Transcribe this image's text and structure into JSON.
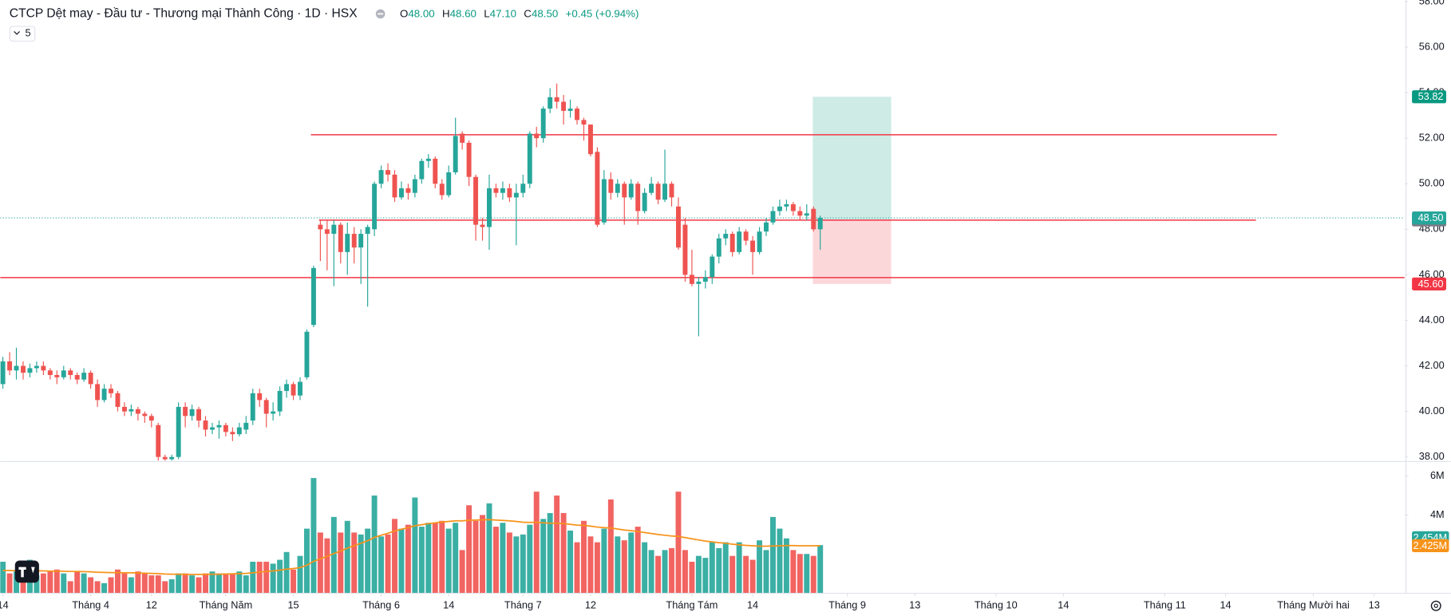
{
  "header": {
    "title": "CTCP Dệt may - Đầu tư - Thương mại Thành Công · 1D · HSX",
    "indicators_collapsed": "5"
  },
  "legend": {
    "color": "#089981",
    "items": [
      {
        "key": "O",
        "value": "48.00"
      },
      {
        "key": "H",
        "value": "48.60"
      },
      {
        "key": "L",
        "value": "47.10"
      },
      {
        "key": "C",
        "value": "48.50"
      }
    ],
    "change": "+0.45 (+0.94%)"
  },
  "chart_data": [
    {
      "type": "candlestick",
      "up_color": "#26a69a",
      "down_color": "#ef5350",
      "open": [
        41.2,
        42.2,
        41.8,
        42.0,
        41.7,
        41.9,
        42.0,
        41.8,
        41.6,
        41.5,
        41.8,
        41.6,
        41.4,
        41.7,
        41.2,
        40.5,
        41.0,
        40.8,
        40.2,
        40.0,
        40.1,
        39.9,
        39.8,
        39.4,
        38.0,
        37.9,
        38.0,
        40.2,
        39.8,
        40.1,
        39.6,
        39.2,
        39.3,
        39.4,
        39.1,
        39.0,
        39.2,
        39.6,
        40.8,
        40.5,
        39.9,
        40.0,
        40.9,
        41.2,
        40.7,
        41.5,
        43.8,
        48.2,
        48.0,
        47.8,
        48.2,
        47.0,
        47.8,
        47.2,
        47.8,
        48.0,
        50.0,
        50.6,
        50.4,
        49.4,
        49.8,
        49.6,
        50.2,
        51.0,
        51.1,
        50.0,
        49.5,
        50.5,
        52.2,
        51.8,
        50.3,
        48.2,
        48.1,
        49.8,
        49.6,
        49.8,
        49.4,
        49.6,
        50.0,
        52.2,
        52.0,
        53.3,
        53.8,
        53.6,
        53.2,
        53.3,
        52.8,
        52.6,
        51.4,
        48.3,
        50.2,
        49.6,
        50.0,
        49.4,
        50.0,
        48.8,
        49.6,
        50.0,
        49.3,
        50.0,
        49.0,
        48.2,
        46.0,
        45.6,
        45.7,
        45.9,
        46.8,
        47.6,
        47.8,
        47.0,
        47.9,
        47.5,
        47.0,
        47.9,
        48.3,
        48.8,
        49.0,
        49.1,
        48.8,
        48.6,
        48.9,
        48.0
      ],
      "high": [
        42.4,
        42.6,
        42.8,
        42.2,
        42.1,
        42.2,
        42.2,
        41.9,
        41.8,
        42.0,
        41.9,
        41.7,
        41.9,
        41.8,
        41.4,
        41.2,
        41.2,
        40.9,
        40.4,
        40.3,
        40.2,
        40.0,
        39.9,
        39.5,
        38.1,
        38.1,
        40.4,
        40.4,
        40.3,
        40.2,
        39.8,
        39.5,
        39.6,
        39.5,
        39.3,
        39.5,
        39.8,
        41.0,
        41.0,
        40.6,
        40.4,
        41.1,
        41.4,
        41.3,
        41.5,
        43.6,
        46.4,
        48.4,
        48.4,
        48.4,
        48.3,
        48.3,
        48.1,
        48.0,
        48.2,
        50.1,
        50.8,
        50.9,
        50.6,
        50.1,
        50.0,
        50.4,
        51.1,
        51.3,
        51.2,
        50.2,
        50.8,
        52.9,
        52.3,
        51.9,
        50.4,
        48.5,
        50.4,
        50.0,
        50.1,
        50.0,
        50.0,
        50.4,
        52.3,
        52.5,
        53.4,
        54.2,
        54.4,
        53.9,
        53.7,
        53.4,
        52.9,
        52.6,
        51.6,
        50.6,
        50.5,
        50.2,
        50.1,
        50.2,
        50.1,
        49.8,
        50.3,
        50.1,
        51.5,
        50.1,
        49.4,
        48.5,
        47.1,
        45.9,
        46.2,
        46.9,
        47.8,
        48.0,
        47.9,
        48.1,
        48.0,
        47.7,
        48.1,
        48.5,
        49.0,
        49.3,
        49.3,
        49.2,
        49.0,
        49.1,
        49.0,
        48.6
      ],
      "low": [
        41.0,
        41.6,
        41.4,
        41.4,
        41.5,
        41.7,
        41.6,
        41.4,
        41.2,
        41.4,
        41.4,
        41.2,
        41.3,
        41.0,
        40.2,
        40.4,
        40.6,
        40.0,
        39.8,
        39.8,
        39.6,
        39.5,
        39.3,
        37.8,
        37.6,
        37.7,
        37.9,
        39.3,
        39.6,
        39.3,
        38.9,
        39.0,
        38.8,
        38.9,
        38.7,
        38.9,
        39.0,
        39.4,
        40.2,
        39.3,
        39.6,
        39.8,
        40.6,
        40.5,
        40.5,
        41.4,
        43.7,
        46.6,
        46.2,
        45.5,
        46.5,
        46.0,
        46.5,
        45.6,
        44.6,
        47.7,
        49.8,
        50.1,
        49.2,
        49.3,
        49.3,
        49.4,
        50.0,
        50.7,
        49.8,
        49.3,
        49.4,
        50.4,
        51.5,
        49.9,
        47.5,
        47.5,
        47.1,
        49.4,
        49.3,
        49.2,
        47.3,
        49.4,
        49.8,
        51.6,
        51.8,
        53.1,
        53.3,
        52.6,
        52.9,
        52.6,
        51.9,
        51.2,
        48.1,
        48.2,
        49.3,
        49.4,
        48.2,
        49.3,
        48.2,
        48.7,
        49.5,
        49.1,
        49.2,
        49.0,
        47.1,
        45.7,
        45.5,
        43.3,
        45.4,
        45.6,
        46.5,
        47.3,
        46.8,
        46.9,
        47.3,
        46.0,
        46.9,
        47.7,
        48.2,
        48.6,
        48.8,
        48.6,
        48.4,
        48.4,
        47.9,
        47.1
      ],
      "close": [
        42.2,
        41.8,
        42.0,
        41.7,
        41.9,
        42.0,
        41.8,
        41.6,
        41.5,
        41.8,
        41.6,
        41.4,
        41.7,
        41.2,
        40.5,
        41.0,
        40.8,
        40.2,
        40.0,
        40.1,
        39.9,
        39.8,
        39.6,
        38.0,
        37.9,
        38.0,
        40.2,
        39.8,
        40.1,
        39.6,
        39.2,
        39.3,
        39.4,
        39.1,
        39.0,
        39.3,
        39.5,
        40.8,
        40.5,
        39.9,
        40.0,
        40.9,
        41.2,
        40.7,
        41.3,
        43.5,
        46.3,
        48.0,
        47.8,
        48.2,
        47.0,
        47.8,
        47.2,
        47.8,
        48.1,
        50.0,
        50.6,
        50.4,
        49.4,
        49.8,
        49.6,
        50.2,
        51.0,
        51.1,
        50.0,
        49.5,
        50.5,
        52.1,
        51.8,
        50.3,
        48.2,
        48.1,
        49.8,
        49.6,
        49.8,
        49.4,
        49.6,
        50.0,
        52.2,
        52.0,
        53.3,
        53.8,
        53.6,
        53.2,
        53.3,
        52.8,
        52.6,
        51.3,
        48.2,
        50.2,
        49.6,
        50.0,
        49.4,
        50.0,
        48.8,
        49.6,
        50.0,
        49.3,
        50.0,
        49.4,
        47.2,
        46.0,
        45.6,
        45.7,
        45.9,
        46.8,
        47.6,
        47.8,
        47.0,
        47.9,
        47.5,
        47.0,
        47.9,
        48.3,
        48.8,
        49.0,
        49.1,
        48.8,
        48.6,
        48.7,
        48.0,
        48.5
      ],
      "last_price_label": "48.50",
      "xlim": [
        -0.4,
        207.5
      ],
      "xticks": [
        {
          "value": 0,
          "label": "14"
        },
        {
          "value": 13,
          "label": "Tháng 4"
        },
        {
          "value": 22,
          "label": "12"
        },
        {
          "value": 33,
          "label": "Tháng Năm"
        },
        {
          "value": 43,
          "label": "15"
        },
        {
          "value": 56,
          "label": "Tháng 6"
        },
        {
          "value": 66,
          "label": "14"
        },
        {
          "value": 77,
          "label": "Tháng 7"
        },
        {
          "value": 87,
          "label": "12"
        },
        {
          "value": 102,
          "label": "Tháng Tám"
        },
        {
          "value": 111,
          "label": "14"
        },
        {
          "value": 125,
          "label": "Tháng 9"
        },
        {
          "value": 135,
          "label": "13"
        },
        {
          "value": 147,
          "label": "Tháng 10"
        },
        {
          "value": 157,
          "label": "14"
        },
        {
          "value": 172,
          "label": "Tháng 11"
        },
        {
          "value": 181,
          "label": "14"
        },
        {
          "value": 194,
          "label": "Tháng Mười hai"
        },
        {
          "value": 203,
          "label": "13"
        }
      ],
      "ylim": [
        37.84,
        58.07
      ],
      "yticks": [
        {
          "value": 38,
          "label": "38.00"
        },
        {
          "value": 40,
          "label": "40.00"
        },
        {
          "value": 42,
          "label": "42.00"
        },
        {
          "value": 44,
          "label": "44.00"
        },
        {
          "value": 46,
          "label": "46.00"
        },
        {
          "value": 48,
          "label": "48.00"
        },
        {
          "value": 50,
          "label": "50.00"
        },
        {
          "value": 52,
          "label": "52.00"
        },
        {
          "value": 54,
          "label": "54.00"
        },
        {
          "value": 56,
          "label": "56.00"
        },
        {
          "value": 58,
          "label": "58.00"
        }
      ],
      "levels": {
        "color": "#f23645",
        "values": [
          52.15,
          48.4,
          45.88
        ],
        "from": [
          45.6,
          46.8,
          -0.4
        ],
        "to": [
          188.6,
          185.5,
          207.5
        ]
      },
      "position": {
        "values": [
          53.82,
          48.41,
          45.6
        ],
        "value_labels": [
          "53.82",
          "48.41",
          "45.60"
        ],
        "from": 119.9,
        "to": 131.5,
        "colors": [
          "#089981",
          "#787b86",
          "#f23645"
        ]
      }
    },
    {
      "type": "volume",
      "values": [
        1.6,
        1.0,
        1.1,
        1.2,
        1.7,
        0.9,
        1.0,
        1.1,
        1.2,
        1.0,
        0.6,
        1.1,
        1.0,
        0.8,
        0.6,
        0.5,
        0.8,
        1.2,
        1.0,
        0.8,
        1.1,
        1.0,
        0.9,
        0.9,
        0.6,
        0.7,
        1.0,
        1.0,
        0.9,
        0.8,
        1.0,
        1.1,
        1.0,
        1.0,
        1.0,
        1.1,
        0.9,
        1.6,
        1.6,
        1.6,
        1.5,
        1.7,
        2.1,
        1.2,
        1.9,
        3.3,
        5.9,
        3.1,
        2.8,
        3.9,
        3.1,
        3.7,
        3.1,
        3.0,
        3.3,
        5.0,
        2.9,
        3.0,
        3.8,
        3.3,
        3.5,
        4.9,
        3.4,
        3.6,
        3.6,
        3.7,
        3.3,
        3.6,
        2.2,
        4.5,
        3.7,
        4.0,
        4.6,
        3.4,
        3.6,
        3.1,
        2.9,
        3.0,
        3.5,
        5.2,
        3.8,
        4.1,
        5.0,
        4.1,
        3.2,
        2.6,
        3.7,
        2.9,
        2.6,
        3.3,
        4.8,
        2.9,
        2.7,
        3.1,
        3.4,
        2.6,
        2.2,
        1.9,
        2.2,
        2.3,
        5.2,
        2.2,
        1.6,
        1.9,
        1.8,
        2.6,
        2.3,
        2.6,
        1.9,
        2.6,
        1.9,
        1.7,
        2.7,
        2.2,
        3.9,
        3.3,
        2.8,
        2.2,
        2.0,
        2.0,
        1.9,
        2.454
      ],
      "last_value_label": "2.454M",
      "ma_color": "#f7931a",
      "ma_values": [
        1.15,
        1.15,
        1.14,
        1.14,
        1.15,
        1.14,
        1.13,
        1.12,
        1.12,
        1.11,
        1.1,
        1.1,
        1.09,
        1.08,
        1.06,
        1.05,
        1.04,
        1.04,
        1.03,
        1.03,
        1.02,
        1.01,
        1.0,
        0.99,
        0.97,
        0.96,
        0.96,
        0.95,
        0.95,
        0.95,
        0.95,
        0.96,
        0.96,
        0.97,
        0.98,
        0.99,
        1.0,
        1.03,
        1.06,
        1.1,
        1.13,
        1.17,
        1.22,
        1.25,
        1.3,
        1.42,
        1.62,
        1.75,
        1.88,
        2.02,
        2.15,
        2.3,
        2.42,
        2.55,
        2.68,
        2.85,
        2.96,
        3.06,
        3.18,
        3.27,
        3.35,
        3.45,
        3.5,
        3.56,
        3.6,
        3.64,
        3.67,
        3.7,
        3.7,
        3.73,
        3.74,
        3.75,
        3.76,
        3.74,
        3.72,
        3.7,
        3.67,
        3.63,
        3.62,
        3.63,
        3.6,
        3.58,
        3.58,
        3.56,
        3.52,
        3.48,
        3.47,
        3.43,
        3.38,
        3.35,
        3.33,
        3.28,
        3.23,
        3.2,
        3.15,
        3.1,
        3.05,
        3.0,
        2.96,
        2.92,
        2.9,
        2.84,
        2.78,
        2.72,
        2.66,
        2.62,
        2.58,
        2.55,
        2.5,
        2.47,
        2.44,
        2.42,
        2.4,
        2.4,
        2.41,
        2.42,
        2.43,
        2.43,
        2.42,
        2.42,
        2.42,
        2.425
      ],
      "ma_last_label": "2.425M",
      "ylim": [
        0,
        6.7
      ],
      "yticks": [
        {
          "value": 4,
          "label": "4M"
        },
        {
          "value": 6,
          "label": "6M"
        }
      ]
    }
  ]
}
